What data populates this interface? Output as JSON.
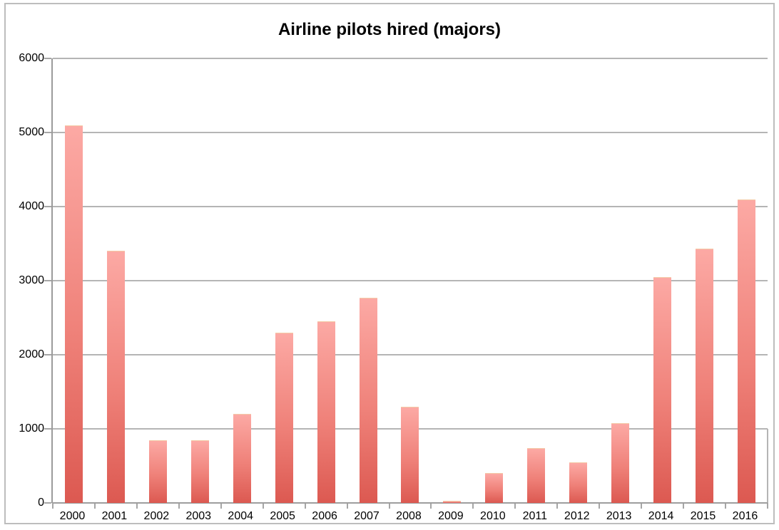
{
  "chart_data": {
    "type": "bar",
    "title": "Airline pilots hired (majors)",
    "xlabel": "",
    "ylabel": "",
    "categories": [
      "2000",
      "2001",
      "2002",
      "2003",
      "2004",
      "2005",
      "2006",
      "2007",
      "2008",
      "2009",
      "2010",
      "2011",
      "2012",
      "2013",
      "2014",
      "2015",
      "2016"
    ],
    "values": [
      5100,
      3400,
      850,
      850,
      1200,
      2300,
      2450,
      2770,
      1300,
      30,
      400,
      740,
      550,
      1080,
      3050,
      3430,
      4100
    ],
    "ylim": [
      0,
      6000
    ],
    "yticks": [
      0,
      1000,
      2000,
      3000,
      4000,
      5000,
      6000
    ],
    "grid": "horizontal",
    "legend": false,
    "colors": {
      "bar_gradient_top": "#fca9a4",
      "bar_gradient_bottom": "#dc5951",
      "bar_top_edge": "#f3cba8",
      "gridline": "#b5b5b5",
      "axis": "#9b9b9b",
      "tick": "#a6a6a6",
      "frame_border": "#bdbdbd",
      "text": "#000000",
      "background": "#ffffff"
    }
  }
}
